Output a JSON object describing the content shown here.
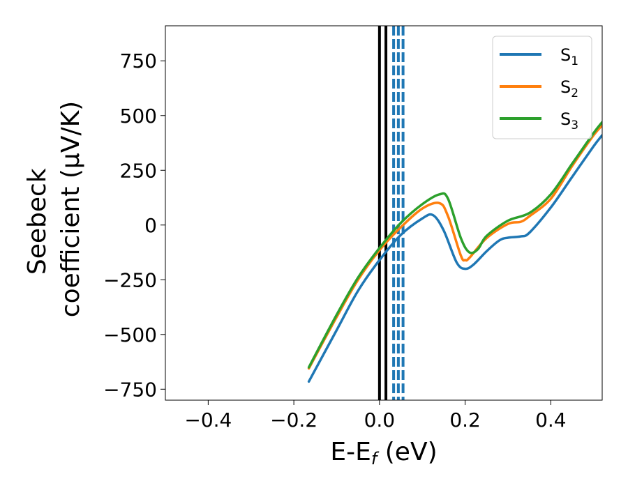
{
  "chart_data": {
    "type": "line",
    "xlabel": "E-E",
    "xlabel_sub": "f",
    "xlabel_unit": " (eV)",
    "ylabel_line1": "Seebeck",
    "ylabel_line2": "coefficient  (μV/K)",
    "xlim": [
      -0.5,
      0.52
    ],
    "ylim": [
      -800,
      910
    ],
    "xticks": [
      -0.4,
      -0.2,
      0.0,
      0.2,
      0.4
    ],
    "xtick_labels": [
      "−0.4",
      "−0.2",
      "0.0",
      "0.2",
      "0.4"
    ],
    "yticks": [
      -750,
      -500,
      -250,
      0,
      250,
      500,
      750
    ],
    "ytick_labels": [
      "−750",
      "−500",
      "−250",
      "0",
      "250",
      "500",
      "750"
    ],
    "grid": false,
    "legend_position": "top-right",
    "vlines_solid": {
      "color": "#000000",
      "x": [
        0.0,
        0.015
      ]
    },
    "vlines_dashed": {
      "color": "#1f77b4",
      "x": [
        0.033,
        0.044,
        0.055
      ]
    },
    "series": [
      {
        "name": "S",
        "sub": "1",
        "color": "#1f77b4",
        "x": [
          -0.165,
          -0.1,
          -0.05,
          0.0,
          0.05,
          0.1,
          0.125,
          0.15,
          0.18,
          0.2,
          0.22,
          0.25,
          0.28,
          0.3,
          0.33,
          0.35,
          0.4,
          0.45,
          0.5,
          0.52
        ],
        "y": [
          -715,
          -480,
          -300,
          -160,
          -45,
          30,
          45,
          -25,
          -170,
          -200,
          -180,
          -120,
          -70,
          -58,
          -52,
          -35,
          80,
          220,
          360,
          410
        ]
      },
      {
        "name": "S",
        "sub": "2",
        "color": "#ff7f0e",
        "x": [
          -0.165,
          -0.1,
          -0.05,
          0.0,
          0.05,
          0.1,
          0.14,
          0.16,
          0.19,
          0.2,
          0.21,
          0.25,
          0.3,
          0.33,
          0.35,
          0.4,
          0.45,
          0.5,
          0.52
        ],
        "y": [
          -655,
          -420,
          -250,
          -115,
          -10,
          75,
          100,
          40,
          -140,
          -160,
          -150,
          -60,
          5,
          15,
          40,
          120,
          270,
          410,
          455
        ]
      },
      {
        "name": "S",
        "sub": "3",
        "color": "#2ca02c",
        "x": [
          -0.165,
          -0.1,
          -0.05,
          0.0,
          0.05,
          0.1,
          0.14,
          0.16,
          0.19,
          0.21,
          0.23,
          0.25,
          0.3,
          0.35,
          0.4,
          0.45,
          0.5,
          0.52
        ],
        "y": [
          -650,
          -410,
          -240,
          -105,
          10,
          95,
          140,
          120,
          -60,
          -125,
          -110,
          -50,
          20,
          55,
          140,
          280,
          420,
          470
        ]
      }
    ]
  }
}
